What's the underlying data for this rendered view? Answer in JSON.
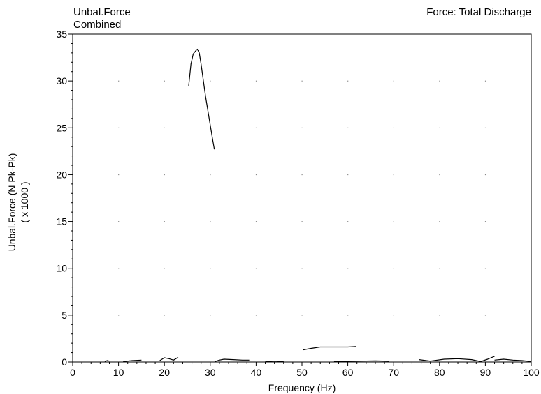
{
  "header": {
    "left_title": "Unbal.Force",
    "left_subtitle": "Combined",
    "right_title": "Force: Total Discharge"
  },
  "chart_data": {
    "type": "line",
    "xlabel": "Frequency (Hz)",
    "ylabel": "Unbal.Force (N Pk-Pk)",
    "ylabel_multiplier": "( x 1000 )",
    "xlim": [
      0,
      100
    ],
    "ylim": [
      0,
      35
    ],
    "x_ticks": [
      0,
      10,
      20,
      30,
      40,
      50,
      60,
      70,
      80,
      90,
      100
    ],
    "y_ticks": [
      0,
      5,
      10,
      15,
      20,
      25,
      30,
      35
    ],
    "grid": "dots",
    "series": [
      {
        "x": [
          25.3,
          25.8,
          26.3,
          26.8,
          27.2,
          27.6,
          28.0,
          28.5,
          29.0,
          29.5,
          30.0,
          30.5,
          30.9
        ],
        "y": [
          29.5,
          31.8,
          32.9,
          33.2,
          33.4,
          33.0,
          31.8,
          30.0,
          28.3,
          26.8,
          25.3,
          23.8,
          22.7
        ]
      },
      {
        "x": [
          50.3,
          52,
          54,
          56,
          58,
          60,
          61.8
        ],
        "y": [
          1.3,
          1.45,
          1.6,
          1.6,
          1.6,
          1.6,
          1.65
        ]
      },
      {
        "x": [
          7.0,
          7.5,
          8.0
        ],
        "y": [
          0.05,
          0.15,
          0.1
        ]
      },
      {
        "x": [
          11,
          13,
          15
        ],
        "y": [
          0.05,
          0.15,
          0.2
        ]
      },
      {
        "x": [
          19,
          20,
          21,
          22,
          23
        ],
        "y": [
          0.15,
          0.45,
          0.35,
          0.2,
          0.5
        ]
      },
      {
        "x": [
          31,
          32,
          33,
          35,
          37,
          38.5
        ],
        "y": [
          0.05,
          0.2,
          0.3,
          0.25,
          0.2,
          0.2
        ]
      },
      {
        "x": [
          42,
          44,
          46
        ],
        "y": [
          0.05,
          0.1,
          0.05
        ]
      },
      {
        "x": [
          57,
          60,
          63,
          66,
          69
        ],
        "y": [
          0.05,
          0.08,
          0.1,
          0.12,
          0.08
        ]
      },
      {
        "x": [
          75.5,
          78,
          81,
          84,
          87,
          89,
          90.5,
          92
        ],
        "y": [
          0.25,
          0.1,
          0.3,
          0.35,
          0.25,
          0.05,
          0.3,
          0.6
        ]
      },
      {
        "x": [
          92,
          94,
          96,
          98,
          100
        ],
        "y": [
          0.2,
          0.3,
          0.2,
          0.15,
          0.05
        ]
      }
    ]
  }
}
